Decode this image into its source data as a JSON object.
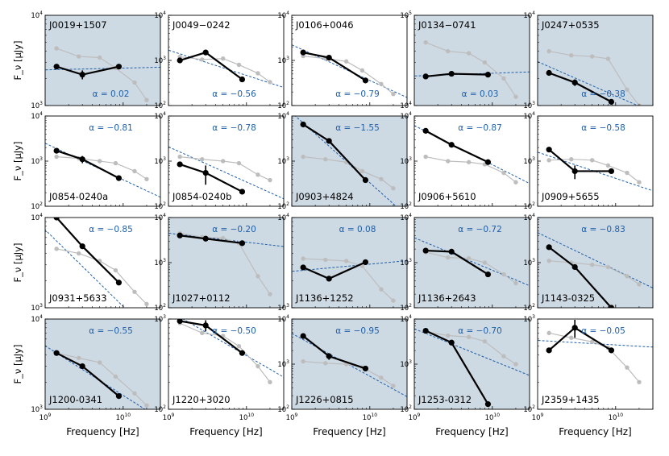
{
  "chart_data": {
    "type": "line",
    "layout": {
      "rows": 4,
      "cols": 5
    },
    "xlabel": "Frequency [Hz]",
    "ylabel": "F_ν [μJy]",
    "xscale": "log",
    "yscale": "log",
    "xlim": [
      1000000000.0,
      30000000000.0
    ],
    "x_ticks": [
      "10^9",
      "10^10"
    ],
    "colors": {
      "shaded_bg": "#cdd9e3",
      "plain_bg": "#ffffff",
      "fit": "#1f5fa8",
      "alpha_text": "#1f5fa8",
      "main": "#000000",
      "ref": "#bdbdbd"
    },
    "alpha_prefix": "α = ",
    "reference_x": [
      1.4,
      2.7,
      5.0,
      8.0,
      14.0,
      20.0
    ],
    "panels": [
      {
        "name": "J0019+1507",
        "shaded": true,
        "ylim_exp": [
          3,
          4
        ],
        "name_pos": "top",
        "alpha": "0.02",
        "alpha_pos": "bottom",
        "fit_alpha": 0.02,
        "fit_y1": 2500,
        "main": {
          "x": [
            1.4,
            3.0,
            8.8
          ],
          "y": [
            2700,
            2200,
            2700
          ],
          "err": [
            0,
            250,
            0
          ]
        },
        "ref": [
          4300,
          3500,
          3400,
          2600,
          1800,
          1150
        ]
      },
      {
        "name": "J0049−0242",
        "shaded": false,
        "ylim_exp": [
          2,
          4
        ],
        "name_pos": "top",
        "alpha": "−0.56",
        "alpha_pos": "bottom",
        "fit_alpha": -0.56,
        "fit_y1": 1400,
        "main": {
          "x": [
            1.4,
            3.0,
            8.8
          ],
          "y": [
            1000,
            1500,
            380
          ],
          "err": [
            0,
            0,
            0
          ]
        },
        "ref": [
          1200,
          1050,
          1100,
          800,
          520,
          330
        ]
      },
      {
        "name": "J0106+0046",
        "shaded": false,
        "ylim_exp": [
          2,
          4
        ],
        "name_pos": "top",
        "alpha": "−0.79",
        "alpha_pos": "bottom",
        "fit_alpha": -0.79,
        "fit_y1": 1700,
        "main": {
          "x": [
            1.4,
            3.0,
            8.8
          ],
          "y": [
            1500,
            1150,
            360
          ],
          "err": [
            0,
            0,
            0
          ]
        },
        "ref": [
          1250,
          1100,
          950,
          600,
          300,
          180
        ]
      },
      {
        "name": "J0134−0741",
        "shaded": true,
        "ylim_exp": [
          4,
          5
        ],
        "name_pos": "top",
        "alpha": "0.03",
        "alpha_pos": "bottom",
        "fit_alpha": 0.03,
        "fit_y1": 21500,
        "main": {
          "x": [
            1.4,
            3.0,
            8.8
          ],
          "y": [
            21000,
            22500,
            22000
          ],
          "err": [
            0,
            0,
            0
          ]
        },
        "ref": [
          50000,
          40000,
          38000,
          30000,
          20000,
          12500
        ]
      },
      {
        "name": "J0247+0535",
        "shaded": true,
        "ylim_exp": [
          3,
          4
        ],
        "name_pos": "top",
        "alpha": "−0.38",
        "alpha_pos": "bottom",
        "fit_alpha": -0.38,
        "fit_y1": 2700,
        "main": {
          "x": [
            1.4,
            3.0,
            8.8
          ],
          "y": [
            2300,
            1800,
            1100
          ],
          "err": [
            0,
            150,
            0
          ]
        },
        "ref": [
          4000,
          3600,
          3500,
          3300,
          1500,
          1000
        ]
      },
      {
        "name": "J0854-0240a",
        "shaded": false,
        "ylim_exp": [
          2,
          4
        ],
        "name_pos": "bottom",
        "alpha": "−0.81",
        "alpha_pos": "top",
        "fit_alpha": -0.81,
        "fit_y1": 1900,
        "main": {
          "x": [
            1.4,
            3.0,
            8.8
          ],
          "y": [
            1700,
            1100,
            420
          ],
          "err": [
            0,
            200,
            0
          ]
        },
        "ref": [
          1250,
          1150,
          1000,
          900,
          600,
          400
        ]
      },
      {
        "name": "J0854-0240b",
        "shaded": false,
        "ylim_exp": [
          2,
          4
        ],
        "name_pos": "bottom",
        "alpha": "−0.78",
        "alpha_pos": "top",
        "fit_alpha": -0.78,
        "fit_y1": 1600,
        "main": {
          "x": [
            1.4,
            3.0,
            8.8
          ],
          "y": [
            850,
            550,
            210
          ],
          "err": [
            0,
            250,
            0
          ]
        },
        "ref": [
          1250,
          1100,
          1000,
          900,
          500,
          380
        ]
      },
      {
        "name": "J0903+4824",
        "shaded": true,
        "ylim_exp": [
          2,
          4
        ],
        "name_pos": "bottom",
        "alpha": "−1.55",
        "alpha_pos": "top",
        "fit_alpha": -1.55,
        "fit_y1": 7000,
        "main": {
          "x": [
            1.4,
            3.0,
            8.8
          ],
          "y": [
            6500,
            2800,
            380
          ],
          "err": [
            0,
            0,
            0
          ]
        },
        "ref": [
          1250,
          1100,
          950,
          600,
          400,
          250
        ]
      },
      {
        "name": "J0906+5610",
        "shaded": false,
        "ylim_exp": [
          2,
          4
        ],
        "name_pos": "bottom",
        "alpha": "−0.87",
        "alpha_pos": "top",
        "fit_alpha": -0.87,
        "fit_y1": 4600,
        "main": {
          "x": [
            1.4,
            3.0,
            8.8
          ],
          "y": [
            4700,
            2300,
            950
          ],
          "err": [
            0,
            0,
            0
          ]
        },
        "ref": [
          1250,
          1000,
          950,
          850,
          550,
          340
        ]
      },
      {
        "name": "J0909+5655",
        "shaded": false,
        "ylim_exp": [
          2,
          4
        ],
        "name_pos": "bottom",
        "alpha": "−0.58",
        "alpha_pos": "top",
        "fit_alpha": -0.58,
        "fit_y1": 1300,
        "main": {
          "x": [
            1.4,
            3.0,
            8.8
          ],
          "y": [
            1800,
            600,
            600
          ],
          "err": [
            0,
            200,
            0
          ]
        },
        "ref": [
          1050,
          1100,
          1050,
          800,
          550,
          340
        ]
      },
      {
        "name": "J0931+5633",
        "shaded": false,
        "ylim_exp": [
          3,
          4
        ],
        "name_pos": "bottom",
        "alpha": "−0.85",
        "alpha_pos": "top",
        "fit_alpha": -0.85,
        "fit_y1": 5500,
        "main": {
          "x": [
            1.4,
            3.0,
            8.8
          ],
          "y": [
            10000,
            4800,
            1900
          ],
          "err": [
            0,
            0,
            0
          ]
        },
        "ref": [
          4500,
          4000,
          3300,
          2600,
          1500,
          1100
        ]
      },
      {
        "name": "J1027+0112",
        "shaded": true,
        "ylim_exp": [
          2,
          4
        ],
        "name_pos": "bottom",
        "alpha": "−0.20",
        "alpha_pos": "top",
        "fit_alpha": -0.2,
        "fit_y1": 4200,
        "main": {
          "x": [
            1.4,
            3.0,
            8.8
          ],
          "y": [
            4000,
            3400,
            2700
          ],
          "err": [
            0,
            0,
            0
          ]
        },
        "ref": [
          4500,
          3700,
          3500,
          2700,
          500,
          200
        ]
      },
      {
        "name": "J1136+1252",
        "shaded": true,
        "ylim_exp": [
          3,
          4
        ],
        "name_pos": "bottom",
        "alpha": "0.08",
        "alpha_pos": "top",
        "fit_alpha": 0.08,
        "fit_y1": 2600,
        "main": {
          "x": [
            1.4,
            3.0,
            8.8
          ],
          "y": [
            2800,
            2100,
            3200
          ],
          "err": [
            0,
            0,
            0
          ]
        },
        "ref": [
          3500,
          3400,
          3300,
          2900,
          1600,
          1200
        ]
      },
      {
        "name": "J1136+2643",
        "shaded": true,
        "ylim_exp": [
          2,
          4
        ],
        "name_pos": "bottom",
        "alpha": "−0.72",
        "alpha_pos": "top",
        "fit_alpha": -0.72,
        "fit_y1": 2800,
        "main": {
          "x": [
            1.4,
            3.0,
            8.8
          ],
          "y": [
            1850,
            1750,
            550
          ],
          "err": [
            0,
            0,
            0
          ]
        },
        "ref": [
          1700,
          1300,
          1250,
          1000,
          550,
          350
        ]
      },
      {
        "name": "J1143-0325",
        "shaded": true,
        "ylim_exp": [
          2,
          4
        ],
        "name_pos": "bottom",
        "alpha": "−0.83",
        "alpha_pos": "top",
        "fit_alpha": -0.83,
        "fit_y1": 3500,
        "main": {
          "x": [
            1.4,
            3.0,
            8.8
          ],
          "y": [
            2200,
            800,
            100
          ],
          "err": [
            0,
            0,
            0
          ]
        },
        "ref": [
          1100,
          1000,
          900,
          800,
          500,
          330
        ]
      },
      {
        "name": "J1200-0341",
        "shaded": true,
        "ylim_exp": [
          3,
          4
        ],
        "name_pos": "bottom",
        "alpha": "−0.55",
        "alpha_pos": "top",
        "fit_alpha": -0.55,
        "fit_y1": 4200,
        "main": {
          "x": [
            1.4,
            3.0,
            8.8
          ],
          "y": [
            4200,
            3000,
            1400
          ],
          "err": [
            0,
            0,
            0
          ]
        },
        "ref": [
          4200,
          3700,
          3300,
          2300,
          1500,
          1100
        ]
      },
      {
        "name": "J1220+3020",
        "shaded": false,
        "ylim_exp": [
          2,
          3
        ],
        "name_pos": "bottom",
        "alpha": "−0.50",
        "alpha_pos": "top",
        "fit_alpha": -0.5,
        "fit_y1": 1050,
        "main": {
          "x": [
            1.4,
            3.0,
            8.8
          ],
          "y": [
            950,
            850,
            420
          ],
          "err": [
            0,
            120,
            0
          ]
        },
        "ref": [
          900,
          700,
          650,
          500,
          300,
          200
        ]
      },
      {
        "name": "J1226+0815",
        "shaded": true,
        "ylim_exp": [
          2,
          4
        ],
        "name_pos": "bottom",
        "alpha": "−0.95",
        "alpha_pos": "top",
        "fit_alpha": -0.95,
        "fit_y1": 3500,
        "main": {
          "x": [
            1.4,
            3.0,
            8.8
          ],
          "y": [
            4200,
            1500,
            800
          ],
          "err": [
            0,
            250,
            0
          ]
        },
        "ref": [
          1150,
          1050,
          1000,
          850,
          500,
          330
        ]
      },
      {
        "name": "J1253-0312",
        "shaded": true,
        "ylim_exp": [
          2,
          4
        ],
        "name_pos": "bottom",
        "alpha": "−0.70",
        "alpha_pos": "top",
        "fit_alpha": -0.7,
        "fit_y1": 4800,
        "main": {
          "x": [
            1.4,
            3.0,
            8.8
          ],
          "y": [
            5500,
            3000,
            130
          ],
          "err": [
            0,
            0,
            0
          ]
        },
        "ref": [
          5200,
          4300,
          4000,
          3200,
          1500,
          1000
        ]
      },
      {
        "name": "J2359+1435",
        "shaded": false,
        "ylim_exp": [
          2,
          3
        ],
        "name_pos": "bottom",
        "alpha": "−0.05",
        "alpha_pos": "top",
        "fit_alpha": -0.05,
        "fit_y1": 570,
        "main": {
          "x": [
            1.4,
            3.0,
            8.8
          ],
          "y": [
            450,
            800,
            450
          ],
          "err": [
            0,
            180,
            0
          ]
        },
        "ref": [
          700,
          620,
          560,
          480,
          290,
          200
        ]
      }
    ]
  }
}
